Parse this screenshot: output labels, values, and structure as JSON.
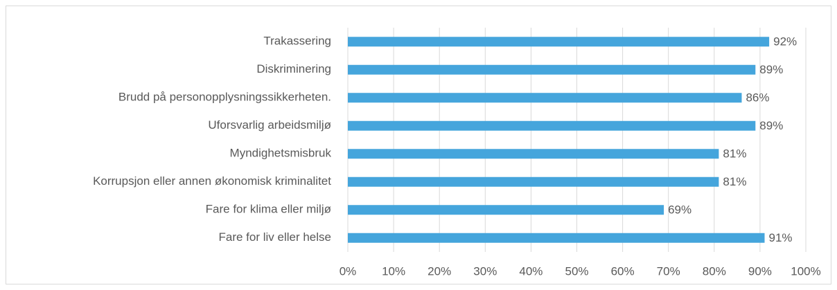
{
  "chart_data": {
    "type": "bar",
    "orientation": "horizontal",
    "categories": [
      "Trakassering",
      "Diskriminering",
      "Brudd på personopplysningssikkerheten.",
      "Uforsvarlig arbeidsmiljø",
      "Myndighetsmisbruk",
      "Korrupsjon eller annen økonomisk kriminalitet",
      "Fare for klima eller miljø",
      "Fare for liv eller helse"
    ],
    "values": [
      92,
      89,
      86,
      89,
      81,
      81,
      69,
      91
    ],
    "value_labels": [
      "92%",
      "89%",
      "86%",
      "89%",
      "81%",
      "81%",
      "69%",
      "91%"
    ],
    "color": "#45a5dc",
    "xlim": [
      0,
      100
    ],
    "xticks": [
      {
        "value": 0,
        "label": "0%"
      },
      {
        "value": 10,
        "label": "10%"
      },
      {
        "value": 20,
        "label": "20%"
      },
      {
        "value": 30,
        "label": "30%"
      },
      {
        "value": 40,
        "label": "40%"
      },
      {
        "value": 50,
        "label": "50%"
      },
      {
        "value": 60,
        "label": "60%"
      },
      {
        "value": 70,
        "label": "70%"
      },
      {
        "value": 80,
        "label": "80%"
      },
      {
        "value": 90,
        "label": "90%"
      },
      {
        "value": 100,
        "label": "100%"
      }
    ],
    "grid": true
  }
}
